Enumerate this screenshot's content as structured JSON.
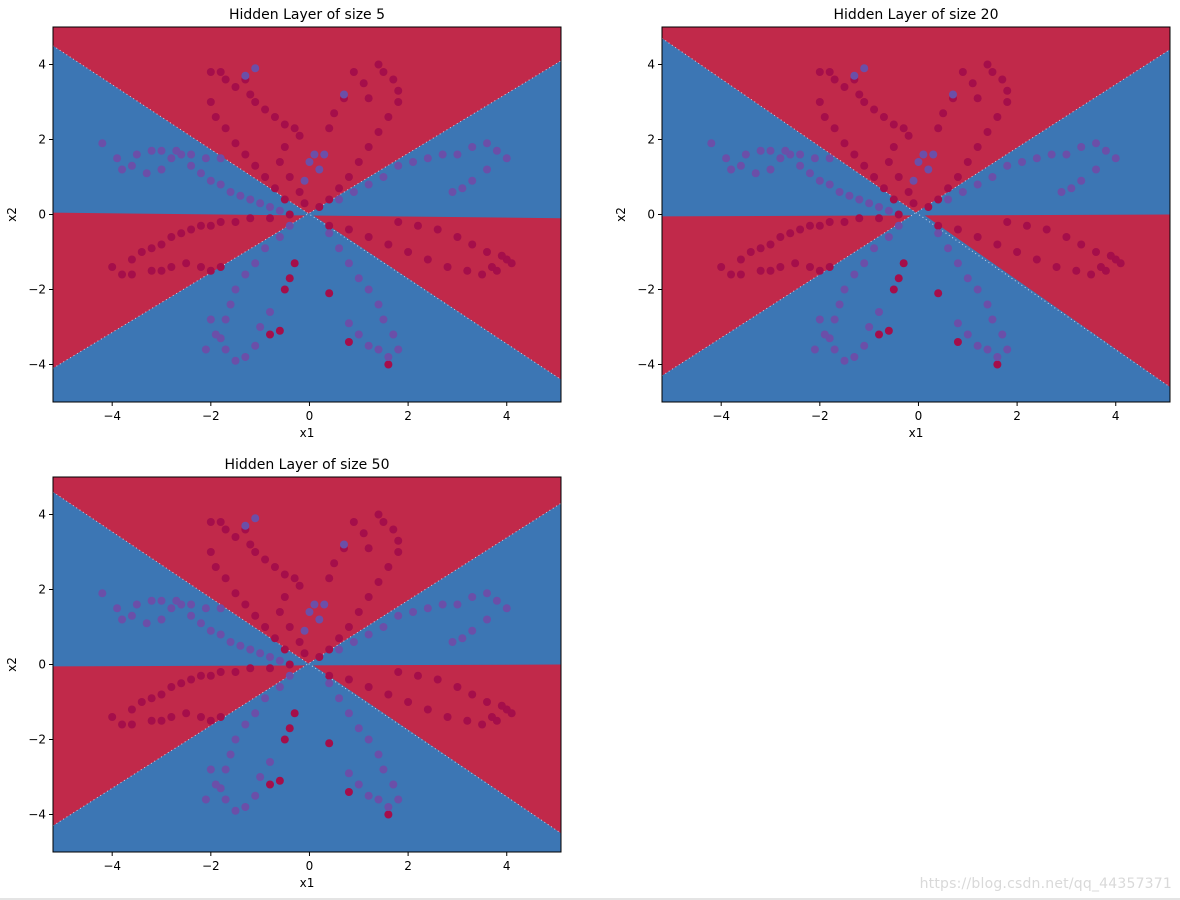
{
  "watermark": "https://blog.csdn.net/qq_44357371",
  "colors": {
    "red_region": "#c1294a",
    "blue_region": "#3c76b4",
    "red_point": "#a50e4a",
    "blue_point": "#6b4fa8",
    "axis": "#000000"
  },
  "chart_data": [
    {
      "type": "scatter",
      "title": "Hidden Layer of size 5",
      "xlabel": "x1",
      "ylabel": "x2",
      "xlim": [
        -5.2,
        5.1
      ],
      "ylim": [
        -5.0,
        5.0
      ],
      "xticks": [
        -4,
        -2,
        0,
        2,
        4
      ],
      "yticks": [
        -4,
        -2,
        0,
        2,
        4
      ],
      "decision_boundary": {
        "up_line": [
          [
            -5.2,
            -4.1
          ],
          [
            5.1,
            4.1
          ]
        ],
        "down_line": [
          [
            -5.2,
            4.5
          ],
          [
            5.1,
            -4.4
          ]
        ],
        "horizontal_line": [
          [
            -5.2,
            0.05
          ],
          [
            5.1,
            -0.1
          ]
        ]
      },
      "grid": false,
      "legend": "none"
    },
    {
      "type": "scatter",
      "title": "Hidden Layer of size 20",
      "xlabel": "x1",
      "ylabel": "x2",
      "xlim": [
        -5.2,
        5.1
      ],
      "ylim": [
        -5.0,
        5.0
      ],
      "xticks": [
        -4,
        -2,
        0,
        2,
        4
      ],
      "yticks": [
        -4,
        -2,
        0,
        2,
        4
      ],
      "decision_boundary": {
        "up_line": [
          [
            -5.2,
            -4.3
          ],
          [
            5.1,
            4.4
          ]
        ],
        "down_line": [
          [
            -5.2,
            4.7
          ],
          [
            5.1,
            -4.6
          ]
        ],
        "horizontal_line": [
          [
            -5.2,
            -0.05
          ],
          [
            5.1,
            0.0
          ]
        ]
      },
      "grid": false,
      "legend": "none"
    },
    {
      "type": "scatter",
      "title": "Hidden Layer of size 50",
      "xlabel": "x1",
      "ylabel": "x2",
      "xlim": [
        -5.2,
        5.1
      ],
      "ylim": [
        -5.0,
        5.0
      ],
      "xticks": [
        -4,
        -2,
        0,
        2,
        4
      ],
      "yticks": [
        -4,
        -2,
        0,
        2,
        4
      ],
      "decision_boundary": {
        "up_line": [
          [
            -5.2,
            -4.3
          ],
          [
            5.1,
            4.3
          ]
        ],
        "down_line": [
          [
            -5.2,
            4.6
          ],
          [
            5.1,
            -4.5
          ]
        ],
        "horizontal_line": [
          [
            -5.2,
            -0.05
          ],
          [
            5.1,
            0.0
          ]
        ]
      },
      "grid": false,
      "legend": "none"
    }
  ],
  "scatter_points": {
    "red": [
      [
        -2.0,
        3.8
      ],
      [
        -1.8,
        3.8
      ],
      [
        -1.7,
        3.6
      ],
      [
        -1.5,
        3.4
      ],
      [
        -1.3,
        3.6
      ],
      [
        -1.2,
        3.2
      ],
      [
        -1.1,
        3.0
      ],
      [
        -0.9,
        2.8
      ],
      [
        -0.7,
        2.6
      ],
      [
        -0.5,
        2.4
      ],
      [
        -0.3,
        2.3
      ],
      [
        -0.2,
        2.1
      ],
      [
        -0.5,
        1.8
      ],
      [
        -0.6,
        1.4
      ],
      [
        -0.4,
        1.0
      ],
      [
        -0.2,
        0.6
      ],
      [
        -0.1,
        0.3
      ],
      [
        -2.0,
        3.0
      ],
      [
        -1.9,
        2.6
      ],
      [
        -1.7,
        2.3
      ],
      [
        -1.5,
        1.9
      ],
      [
        -1.3,
        1.6
      ],
      [
        -1.1,
        1.3
      ],
      [
        -0.9,
        1.0
      ],
      [
        -0.7,
        0.7
      ],
      [
        -0.5,
        0.4
      ],
      [
        1.4,
        4.0
      ],
      [
        1.5,
        3.8
      ],
      [
        1.7,
        3.6
      ],
      [
        1.8,
        3.3
      ],
      [
        1.8,
        3.0
      ],
      [
        1.6,
        2.6
      ],
      [
        1.4,
        2.2
      ],
      [
        1.2,
        1.8
      ],
      [
        1.0,
        1.4
      ],
      [
        0.8,
        1.0
      ],
      [
        0.6,
        0.7
      ],
      [
        0.4,
        0.4
      ],
      [
        0.2,
        0.2
      ],
      [
        0.9,
        3.8
      ],
      [
        1.1,
        3.5
      ],
      [
        1.2,
        3.1
      ],
      [
        0.7,
        3.1
      ],
      [
        0.5,
        2.7
      ],
      [
        0.4,
        2.3
      ],
      [
        -4.0,
        -1.4
      ],
      [
        -3.8,
        -1.6
      ],
      [
        -3.6,
        -1.2
      ],
      [
        -3.4,
        -1.0
      ],
      [
        -3.2,
        -0.9
      ],
      [
        -3.0,
        -0.8
      ],
      [
        -2.8,
        -0.6
      ],
      [
        -2.6,
        -0.5
      ],
      [
        -2.4,
        -0.4
      ],
      [
        -2.2,
        -0.3
      ],
      [
        -2.0,
        -0.3
      ],
      [
        -1.8,
        -0.2
      ],
      [
        -1.5,
        -0.2
      ],
      [
        -1.2,
        -0.1
      ],
      [
        -0.8,
        -0.1
      ],
      [
        -0.4,
        0.0
      ],
      [
        -3.6,
        -1.6
      ],
      [
        -3.2,
        -1.5
      ],
      [
        -3.0,
        -1.5
      ],
      [
        -2.8,
        -1.4
      ],
      [
        -2.5,
        -1.3
      ],
      [
        -2.2,
        -1.4
      ],
      [
        -2.0,
        -1.5
      ],
      [
        -1.8,
        -1.4
      ],
      [
        0.4,
        -0.3
      ],
      [
        0.8,
        -0.4
      ],
      [
        1.2,
        -0.6
      ],
      [
        1.6,
        -0.8
      ],
      [
        2.0,
        -1.0
      ],
      [
        2.4,
        -1.2
      ],
      [
        2.8,
        -1.4
      ],
      [
        3.2,
        -1.5
      ],
      [
        3.5,
        -1.6
      ],
      [
        3.8,
        -1.5
      ],
      [
        4.0,
        -1.2
      ],
      [
        1.8,
        -0.2
      ],
      [
        2.2,
        -0.3
      ],
      [
        2.6,
        -0.4
      ],
      [
        3.0,
        -0.6
      ],
      [
        3.3,
        -0.8
      ],
      [
        3.6,
        -1.0
      ],
      [
        3.9,
        -1.1
      ],
      [
        4.1,
        -1.3
      ],
      [
        3.7,
        -1.4
      ],
      [
        -0.5,
        -2.0
      ],
      [
        -0.4,
        -1.7
      ],
      [
        0.4,
        -2.1
      ],
      [
        0.8,
        -3.4
      ],
      [
        1.6,
        -4.0
      ],
      [
        -0.6,
        -3.1
      ],
      [
        -0.8,
        -3.2
      ],
      [
        -0.3,
        -1.3
      ]
    ],
    "blue": [
      [
        -4.2,
        1.9
      ],
      [
        -3.9,
        1.5
      ],
      [
        -3.6,
        1.3
      ],
      [
        -3.3,
        1.1
      ],
      [
        -3.0,
        1.2
      ],
      [
        -2.8,
        1.5
      ],
      [
        -2.6,
        1.6
      ],
      [
        -2.4,
        1.3
      ],
      [
        -2.2,
        1.1
      ],
      [
        -2.0,
        0.9
      ],
      [
        -1.8,
        0.8
      ],
      [
        -1.6,
        0.6
      ],
      [
        -1.4,
        0.5
      ],
      [
        -1.2,
        0.4
      ],
      [
        -1.0,
        0.3
      ],
      [
        -0.8,
        0.2
      ],
      [
        -0.6,
        0.1
      ],
      [
        -3.8,
        1.2
      ],
      [
        -3.5,
        1.6
      ],
      [
        -3.2,
        1.7
      ],
      [
        -3.0,
        1.7
      ],
      [
        -2.7,
        1.7
      ],
      [
        -2.4,
        1.6
      ],
      [
        -2.1,
        1.5
      ],
      [
        -1.8,
        1.5
      ],
      [
        4.0,
        1.5
      ],
      [
        3.8,
        1.7
      ],
      [
        3.6,
        1.9
      ],
      [
        3.3,
        1.8
      ],
      [
        3.0,
        1.6
      ],
      [
        2.7,
        1.6
      ],
      [
        2.4,
        1.5
      ],
      [
        2.1,
        1.4
      ],
      [
        1.8,
        1.3
      ],
      [
        1.5,
        1.0
      ],
      [
        1.2,
        0.8
      ],
      [
        0.9,
        0.6
      ],
      [
        0.6,
        0.4
      ],
      [
        3.6,
        1.2
      ],
      [
        3.3,
        0.9
      ],
      [
        3.1,
        0.7
      ],
      [
        2.9,
        0.6
      ],
      [
        -0.4,
        -0.3
      ],
      [
        -0.6,
        -0.6
      ],
      [
        -0.9,
        -0.9
      ],
      [
        -1.1,
        -1.3
      ],
      [
        -1.3,
        -1.6
      ],
      [
        -1.5,
        -2.0
      ],
      [
        -1.6,
        -2.4
      ],
      [
        -1.7,
        -2.8
      ],
      [
        -1.8,
        -3.3
      ],
      [
        -1.7,
        -3.6
      ],
      [
        -1.5,
        -3.9
      ],
      [
        -1.3,
        -3.8
      ],
      [
        -1.1,
        -3.5
      ],
      [
        -1.0,
        -3.0
      ],
      [
        -0.8,
        -2.6
      ],
      [
        -2.0,
        -2.8
      ],
      [
        -1.9,
        -3.2
      ],
      [
        -2.1,
        -3.6
      ],
      [
        0.4,
        -0.5
      ],
      [
        0.6,
        -0.9
      ],
      [
        0.8,
        -1.3
      ],
      [
        1.0,
        -1.7
      ],
      [
        1.2,
        -2.0
      ],
      [
        1.4,
        -2.4
      ],
      [
        1.5,
        -2.8
      ],
      [
        1.7,
        -3.2
      ],
      [
        1.8,
        -3.6
      ],
      [
        1.6,
        -3.8
      ],
      [
        1.4,
        -3.6
      ],
      [
        1.2,
        -3.5
      ],
      [
        1.0,
        -3.2
      ],
      [
        0.8,
        -2.9
      ],
      [
        0.2,
        1.2
      ],
      [
        0.1,
        1.6
      ],
      [
        0.0,
        1.4
      ],
      [
        -0.1,
        0.9
      ],
      [
        -1.1,
        3.9
      ],
      [
        -1.3,
        3.7
      ],
      [
        0.7,
        3.2
      ],
      [
        0.3,
        1.6
      ]
    ]
  }
}
